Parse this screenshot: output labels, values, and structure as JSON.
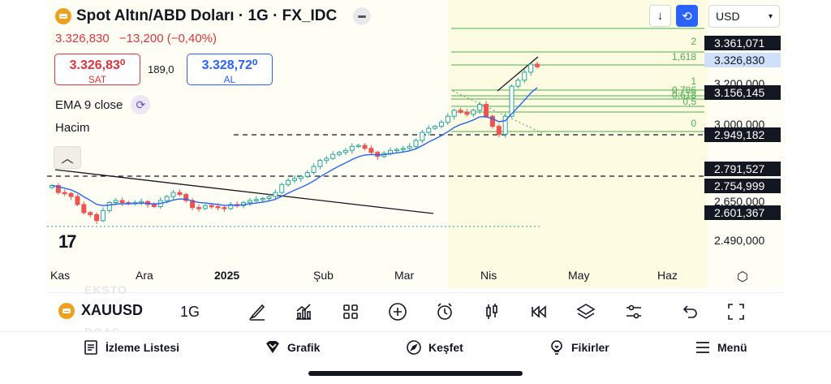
{
  "header": {
    "symbol_title": "Spot Altın/ABD Doları · 1G · FX_IDC",
    "last_price": "3.326,830",
    "change": "−13,200 (−0,40%)",
    "sell_value": "3.326,83⁰",
    "sell_label": "SAT",
    "spread": "189,0",
    "buy_value": "3.328,72⁰",
    "buy_label": "AL",
    "indicator": "EMA 9 close",
    "volume_label": "Hacim",
    "currency": "USD"
  },
  "price_axis": {
    "tags": [
      {
        "label": "3.361,071",
        "style": "dark",
        "value": 3361.071
      },
      {
        "label": "3.326,830",
        "style": "light",
        "value": 3326.83
      },
      {
        "label": "3.200,000",
        "style": "plain",
        "value": 3200
      },
      {
        "label": "3.156,145",
        "style": "dark",
        "value": 3156.145
      },
      {
        "label": "3.000,000",
        "style": "plain",
        "value": 3000
      },
      {
        "label": "2.949,182",
        "style": "dark",
        "value": 2949.182
      },
      {
        "label": "2.791,527",
        "style": "dark",
        "value": 2791.527
      },
      {
        "label": "2.754,999",
        "style": "dark",
        "value": 2754.999
      },
      {
        "label": "2.650,000",
        "style": "plain",
        "value": 2650
      },
      {
        "label": "2.601,367",
        "style": "dark",
        "value": 2601.367
      },
      {
        "label": "2.490,000",
        "style": "plain",
        "value": 2490
      }
    ]
  },
  "fib_levels": [
    "2",
    "1,618",
    "1",
    "0,786",
    "0,618",
    "0,5",
    "0"
  ],
  "time_axis": [
    {
      "label": "Kas",
      "bold": false
    },
    {
      "label": "Ara",
      "bold": false
    },
    {
      "label": "2025",
      "bold": true
    },
    {
      "label": "Şub",
      "bold": false
    },
    {
      "label": "Mar",
      "bold": false
    },
    {
      "label": "Nis",
      "bold": false
    },
    {
      "label": "May",
      "bold": false
    },
    {
      "label": "Haz",
      "bold": false
    }
  ],
  "toolbar": {
    "symbol": "XAUUSD",
    "interval": "1G",
    "ghost_top": "EKSTO",
    "ghost_bottom": "DOAS",
    "tools": [
      "brush-icon",
      "indicators-icon",
      "grid-icon",
      "plus-circle-icon",
      "alarm-icon",
      "candles-icon",
      "replay-icon",
      "layers-icon",
      "sliders-icon",
      "undo-icon",
      "fullscreen-icon"
    ]
  },
  "bottom_nav": {
    "watchlist": "İzleme Listesi",
    "chart": "Grafik",
    "explore": "Keşfet",
    "ideas": "Fikirler",
    "menu": "Menü"
  },
  "colors": {
    "up": "#26a69a",
    "down": "#ef5350",
    "ema": "#2962ff",
    "fib": "#4caf50",
    "sell": "#e0343c",
    "buy": "#2962ff"
  },
  "chart_data": {
    "type": "line",
    "series_close": [
      2735,
      2700,
      2695,
      2680,
      2640,
      2600,
      2590,
      2560,
      2610,
      2650,
      2660,
      2650,
      2645,
      2650,
      2655,
      2640,
      2630,
      2660,
      2680,
      2700,
      2690,
      2660,
      2625,
      2620,
      2635,
      2630,
      2625,
      2620,
      2640,
      2635,
      2650,
      2660,
      2665,
      2670,
      2680,
      2700,
      2740,
      2760,
      2770,
      2780,
      2800,
      2830,
      2860,
      2870,
      2890,
      2900,
      2910,
      2930,
      2935,
      2920,
      2900,
      2880,
      2895,
      2910,
      2915,
      2920,
      2930,
      2960,
      3000,
      3020,
      3030,
      3050,
      3080,
      3110,
      3100,
      3090,
      3110,
      3140,
      3080,
      3030,
      2990,
      3080,
      3230,
      3260,
      3300,
      3340,
      3327
    ],
    "ylim": [
      2490,
      3361
    ]
  }
}
